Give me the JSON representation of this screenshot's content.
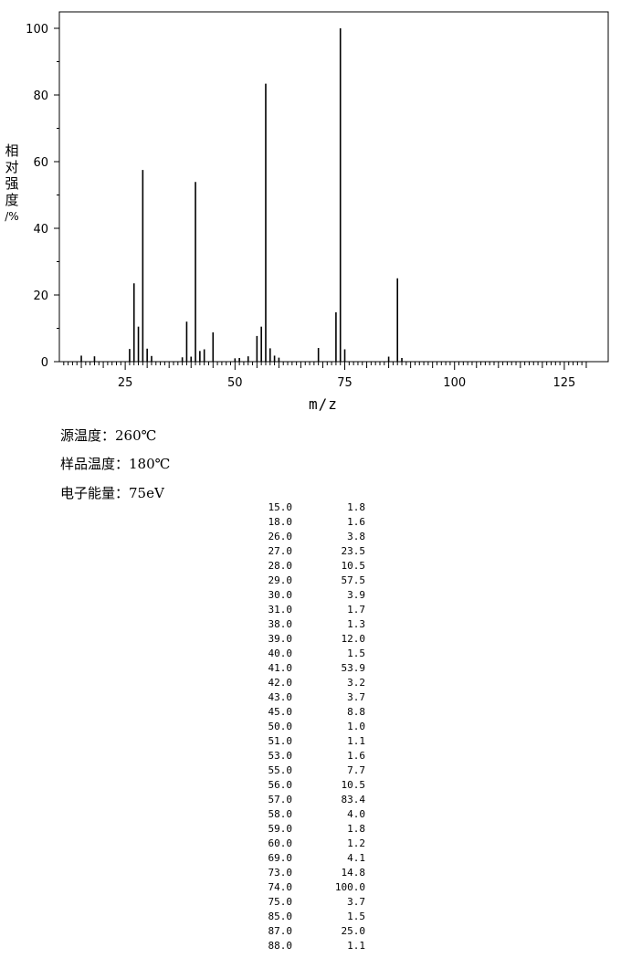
{
  "chart_data": {
    "type": "bar",
    "xlabel": "m/z",
    "ylabel_chars": [
      "相",
      "对",
      "强",
      "度",
      "/%"
    ],
    "xlim": [
      10,
      135
    ],
    "ylim": [
      0,
      100
    ],
    "x_ticks": [
      25,
      50,
      75,
      100,
      125
    ],
    "y_ticks": [
      0,
      20,
      40,
      60,
      80,
      100
    ],
    "grid": false,
    "peaks": [
      {
        "mz": 15.0,
        "abundance": 1.8
      },
      {
        "mz": 18.0,
        "abundance": 1.6
      },
      {
        "mz": 26.0,
        "abundance": 3.8
      },
      {
        "mz": 27.0,
        "abundance": 23.5
      },
      {
        "mz": 28.0,
        "abundance": 10.5
      },
      {
        "mz": 29.0,
        "abundance": 57.5
      },
      {
        "mz": 30.0,
        "abundance": 3.9
      },
      {
        "mz": 31.0,
        "abundance": 1.7
      },
      {
        "mz": 38.0,
        "abundance": 1.3
      },
      {
        "mz": 39.0,
        "abundance": 12.0
      },
      {
        "mz": 40.0,
        "abundance": 1.5
      },
      {
        "mz": 41.0,
        "abundance": 53.9
      },
      {
        "mz": 42.0,
        "abundance": 3.2
      },
      {
        "mz": 43.0,
        "abundance": 3.7
      },
      {
        "mz": 45.0,
        "abundance": 8.8
      },
      {
        "mz": 50.0,
        "abundance": 1.0
      },
      {
        "mz": 51.0,
        "abundance": 1.1
      },
      {
        "mz": 53.0,
        "abundance": 1.6
      },
      {
        "mz": 55.0,
        "abundance": 7.7
      },
      {
        "mz": 56.0,
        "abundance": 10.5
      },
      {
        "mz": 57.0,
        "abundance": 83.4
      },
      {
        "mz": 58.0,
        "abundance": 4.0
      },
      {
        "mz": 59.0,
        "abundance": 1.8
      },
      {
        "mz": 60.0,
        "abundance": 1.2
      },
      {
        "mz": 69.0,
        "abundance": 4.1
      },
      {
        "mz": 73.0,
        "abundance": 14.8
      },
      {
        "mz": 74.0,
        "abundance": 100.0
      },
      {
        "mz": 75.0,
        "abundance": 3.7
      },
      {
        "mz": 85.0,
        "abundance": 1.5
      },
      {
        "mz": 87.0,
        "abundance": 25.0
      },
      {
        "mz": 88.0,
        "abundance": 1.1
      }
    ]
  },
  "conditions": {
    "source_temp": "源温度：260℃",
    "sample_temp": "样品温度：180℃",
    "electron_energy": "电子能量：75eV"
  },
  "table": {
    "rows": [
      [
        "15.0",
        "1.8"
      ],
      [
        "18.0",
        "1.6"
      ],
      [
        "26.0",
        "3.8"
      ],
      [
        "27.0",
        "23.5"
      ],
      [
        "28.0",
        "10.5"
      ],
      [
        "29.0",
        "57.5"
      ],
      [
        "30.0",
        "3.9"
      ],
      [
        "31.0",
        "1.7"
      ],
      [
        "38.0",
        "1.3"
      ],
      [
        "39.0",
        "12.0"
      ],
      [
        "40.0",
        "1.5"
      ],
      [
        "41.0",
        "53.9"
      ],
      [
        "42.0",
        "3.2"
      ],
      [
        "43.0",
        "3.7"
      ],
      [
        "45.0",
        "8.8"
      ],
      [
        "50.0",
        "1.0"
      ],
      [
        "51.0",
        "1.1"
      ],
      [
        "53.0",
        "1.6"
      ],
      [
        "55.0",
        "7.7"
      ],
      [
        "56.0",
        "10.5"
      ],
      [
        "57.0",
        "83.4"
      ],
      [
        "58.0",
        "4.0"
      ],
      [
        "59.0",
        "1.8"
      ],
      [
        "60.0",
        "1.2"
      ],
      [
        "69.0",
        "4.1"
      ],
      [
        "73.0",
        "14.8"
      ],
      [
        "74.0",
        "100.0"
      ],
      [
        "75.0",
        "3.7"
      ],
      [
        "85.0",
        "1.5"
      ],
      [
        "87.0",
        "25.0"
      ],
      [
        "88.0",
        "1.1"
      ]
    ]
  }
}
